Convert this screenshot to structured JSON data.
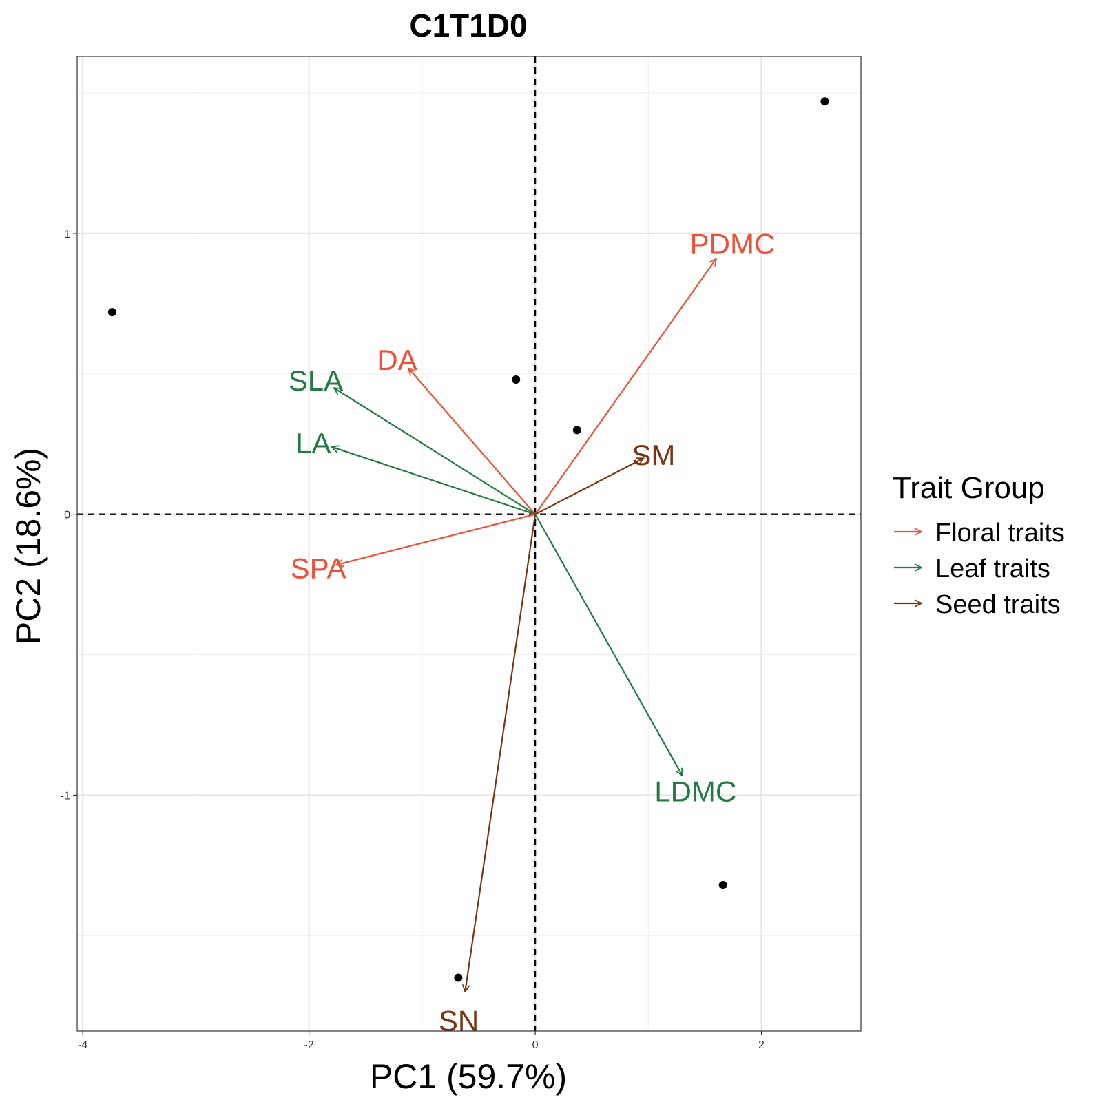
{
  "chart_data": {
    "type": "scatter",
    "title": "C1T1D0",
    "xlabel": "PC1 (59.7%)",
    "ylabel": "PC2 (18.6%)",
    "xlim": [
      -4.05,
      2.88
    ],
    "ylim": [
      -1.84,
      1.63
    ],
    "x_ticks": [
      -4,
      -2,
      0,
      2
    ],
    "x_tick_labels": [
      "-4",
      "-2",
      "0",
      "2"
    ],
    "y_ticks": [
      -1,
      0,
      1
    ],
    "y_tick_labels": [
      "-1",
      "0",
      "1"
    ],
    "grid": true,
    "reference_lines": "dashed lines at x=0 and y=0",
    "points": [
      {
        "x": -3.74,
        "y": 0.72
      },
      {
        "x": -0.17,
        "y": 0.48
      },
      {
        "x": 0.37,
        "y": 0.3
      },
      {
        "x": 2.56,
        "y": 1.47
      },
      {
        "x": 1.66,
        "y": -1.32
      },
      {
        "x": -0.68,
        "y": -1.65
      }
    ],
    "vectors": [
      {
        "label": "PDMC",
        "group": "Floral traits",
        "x": 1.6,
        "y": 0.91
      },
      {
        "label": "DA",
        "group": "Floral traits",
        "x": -1.12,
        "y": 0.52
      },
      {
        "label": "SPA",
        "group": "Floral traits",
        "x": -1.76,
        "y": -0.18
      },
      {
        "label": "SLA",
        "group": "Leaf traits",
        "x": -1.78,
        "y": 0.45
      },
      {
        "label": "LA",
        "group": "Leaf traits",
        "x": -1.8,
        "y": 0.24
      },
      {
        "label": "LDMC",
        "group": "Leaf traits",
        "x": 1.3,
        "y": -0.93
      },
      {
        "label": "SM",
        "group": "Seed traits",
        "x": 0.96,
        "y": 0.2
      },
      {
        "label": "SN",
        "group": "Seed traits",
        "x": -0.62,
        "y": -1.7
      }
    ],
    "legend": {
      "title": "Trait Group",
      "position": "right",
      "entries": [
        {
          "name": "Floral traits",
          "color": "#f04e37"
        },
        {
          "name": "Leaf traits",
          "color": "#237a45"
        },
        {
          "name": "Seed traits",
          "color": "#7a3412"
        }
      ]
    }
  }
}
